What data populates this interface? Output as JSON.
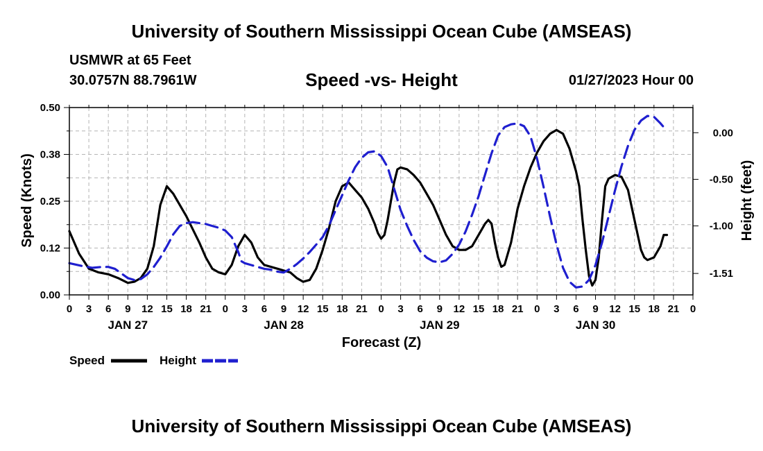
{
  "header": {
    "title": "University of Southern Mississippi Ocean Cube (AMSEAS)",
    "station": "USMWR at 65 Feet",
    "coords": "30.0757N  88.7961W",
    "date": "01/27/2023 Hour 00"
  },
  "footer": {
    "title": "University of Southern Mississippi Ocean Cube (AMSEAS)"
  },
  "colors": {
    "speed": "#000000",
    "height": "#1f1fcf",
    "grid": "#b4b4b4"
  },
  "chart_data": {
    "type": "line",
    "title": "Speed -vs- Height",
    "xlabel": "Forecast (Z)",
    "ylabel_left": "Speed (Knots)",
    "ylabel_right": "Height (feet)",
    "x_hours_range": [
      0,
      96
    ],
    "x_tick_labels": [
      "0",
      "3",
      "6",
      "9",
      "12",
      "15",
      "18",
      "21",
      "0",
      "3",
      "6",
      "9",
      "12",
      "15",
      "18",
      "21",
      "0",
      "3",
      "6",
      "9",
      "12",
      "15",
      "18",
      "21",
      "0",
      "3",
      "6",
      "9",
      "12",
      "15",
      "18",
      "21",
      "0"
    ],
    "day_labels": [
      {
        "hour": 9,
        "label": "JAN 27"
      },
      {
        "hour": 33,
        "label": "JAN 28"
      },
      {
        "hour": 57,
        "label": "JAN 29"
      },
      {
        "hour": 81,
        "label": "JAN 30"
      }
    ],
    "y_left": {
      "range": [
        0,
        0.5
      ],
      "ticks": [
        0.0,
        0.125,
        0.25,
        0.375,
        0.5
      ],
      "tick_labels": [
        "0.00",
        "0.12",
        "0.25",
        "0.38",
        "0.50"
      ]
    },
    "y_right": {
      "range": [
        -1.74,
        0.27
      ],
      "ticks": [
        0.0,
        -0.5,
        -1.0,
        -1.51
      ],
      "tick_labels": [
        "0.00",
        "-0.50",
        "-1.00",
        "-1.51"
      ]
    },
    "legend": [
      {
        "name": "Speed",
        "style": "solid"
      },
      {
        "name": "Height",
        "style": "dashed"
      }
    ],
    "series": [
      {
        "name": "Speed",
        "axis": "left",
        "points": [
          [
            0,
            0.17
          ],
          [
            1.5,
            0.11
          ],
          [
            3,
            0.07
          ],
          [
            4.5,
            0.06
          ],
          [
            6,
            0.055
          ],
          [
            7.5,
            0.045
          ],
          [
            9,
            0.032
          ],
          [
            10,
            0.035
          ],
          [
            11,
            0.045
          ],
          [
            12,
            0.07
          ],
          [
            13,
            0.13
          ],
          [
            14,
            0.24
          ],
          [
            15,
            0.29
          ],
          [
            16,
            0.27
          ],
          [
            18,
            0.21
          ],
          [
            20,
            0.14
          ],
          [
            21,
            0.1
          ],
          [
            22,
            0.07
          ],
          [
            23,
            0.06
          ],
          [
            24,
            0.055
          ],
          [
            25,
            0.08
          ],
          [
            26,
            0.13
          ],
          [
            27,
            0.16
          ],
          [
            28,
            0.14
          ],
          [
            29,
            0.1
          ],
          [
            30,
            0.08
          ],
          [
            32,
            0.07
          ],
          [
            34,
            0.06
          ],
          [
            35,
            0.045
          ],
          [
            36,
            0.035
          ],
          [
            37,
            0.04
          ],
          [
            38,
            0.07
          ],
          [
            39,
            0.12
          ],
          [
            40,
            0.18
          ],
          [
            41,
            0.25
          ],
          [
            42,
            0.29
          ],
          [
            43,
            0.3
          ],
          [
            44,
            0.28
          ],
          [
            45,
            0.26
          ],
          [
            46,
            0.23
          ],
          [
            47,
            0.19
          ],
          [
            47.5,
            0.165
          ],
          [
            48,
            0.15
          ],
          [
            48.5,
            0.16
          ],
          [
            49,
            0.2
          ],
          [
            50,
            0.3
          ],
          [
            50.5,
            0.335
          ],
          [
            51,
            0.34
          ],
          [
            52,
            0.335
          ],
          [
            53,
            0.32
          ],
          [
            54,
            0.3
          ],
          [
            55,
            0.27
          ],
          [
            56,
            0.24
          ],
          [
            57,
            0.2
          ],
          [
            58,
            0.16
          ],
          [
            59,
            0.13
          ],
          [
            60,
            0.12
          ],
          [
            61,
            0.12
          ],
          [
            62,
            0.13
          ],
          [
            63,
            0.16
          ],
          [
            64,
            0.19
          ],
          [
            64.5,
            0.2
          ],
          [
            65,
            0.19
          ],
          [
            65.5,
            0.14
          ],
          [
            66,
            0.1
          ],
          [
            66.5,
            0.075
          ],
          [
            67,
            0.08
          ],
          [
            68,
            0.14
          ],
          [
            69,
            0.23
          ],
          [
            70,
            0.29
          ],
          [
            71,
            0.34
          ],
          [
            72,
            0.38
          ],
          [
            73,
            0.41
          ],
          [
            74,
            0.43
          ],
          [
            75,
            0.44
          ],
          [
            76,
            0.43
          ],
          [
            77,
            0.39
          ],
          [
            78,
            0.33
          ],
          [
            78.5,
            0.29
          ],
          [
            79,
            0.2
          ],
          [
            79.5,
            0.12
          ],
          [
            80,
            0.05
          ],
          [
            80.5,
            0.025
          ],
          [
            81,
            0.04
          ],
          [
            81.5,
            0.1
          ],
          [
            82,
            0.2
          ],
          [
            82.5,
            0.29
          ],
          [
            83,
            0.31
          ],
          [
            84,
            0.32
          ],
          [
            85,
            0.315
          ],
          [
            86,
            0.28
          ],
          [
            87,
            0.2
          ],
          [
            88,
            0.12
          ],
          [
            88.5,
            0.1
          ],
          [
            89,
            0.093
          ],
          [
            90,
            0.1
          ],
          [
            91,
            0.13
          ],
          [
            91.5,
            0.16
          ],
          [
            92,
            0.16
          ]
        ]
      },
      {
        "name": "Height",
        "axis": "right",
        "points": [
          [
            0,
            -1.4
          ],
          [
            2,
            -1.43
          ],
          [
            3.5,
            -1.45
          ],
          [
            5,
            -1.44
          ],
          [
            6,
            -1.44
          ],
          [
            7,
            -1.46
          ],
          [
            8,
            -1.51
          ],
          [
            9,
            -1.56
          ],
          [
            10,
            -1.58
          ],
          [
            11,
            -1.57
          ],
          [
            12,
            -1.52
          ],
          [
            13,
            -1.44
          ],
          [
            14,
            -1.34
          ],
          [
            15,
            -1.22
          ],
          [
            16,
            -1.09
          ],
          [
            17,
            -1.0
          ],
          [
            18,
            -0.97
          ],
          [
            19,
            -0.96
          ],
          [
            20,
            -0.97
          ],
          [
            21,
            -0.98
          ],
          [
            22,
            -1.0
          ],
          [
            23,
            -1.02
          ],
          [
            24,
            -1.05
          ],
          [
            25,
            -1.12
          ],
          [
            26,
            -1.28
          ],
          [
            26.5,
            -1.38
          ],
          [
            27,
            -1.4
          ],
          [
            28,
            -1.42
          ],
          [
            29,
            -1.44
          ],
          [
            30,
            -1.46
          ],
          [
            31,
            -1.47
          ],
          [
            32,
            -1.49
          ],
          [
            33,
            -1.5
          ],
          [
            34,
            -1.46
          ],
          [
            35,
            -1.41
          ],
          [
            36,
            -1.35
          ],
          [
            37,
            -1.28
          ],
          [
            38,
            -1.2
          ],
          [
            39,
            -1.12
          ],
          [
            40,
            -0.99
          ],
          [
            41,
            -0.83
          ],
          [
            42,
            -0.67
          ],
          [
            43,
            -0.51
          ],
          [
            44,
            -0.37
          ],
          [
            45,
            -0.27
          ],
          [
            46,
            -0.21
          ],
          [
            47,
            -0.2
          ],
          [
            48,
            -0.25
          ],
          [
            49,
            -0.37
          ],
          [
            50,
            -0.6
          ],
          [
            51,
            -0.83
          ],
          [
            52,
            -1.0
          ],
          [
            53,
            -1.15
          ],
          [
            54,
            -1.27
          ],
          [
            55,
            -1.34
          ],
          [
            56,
            -1.38
          ],
          [
            57,
            -1.39
          ],
          [
            58,
            -1.37
          ],
          [
            59,
            -1.3
          ],
          [
            60,
            -1.2
          ],
          [
            61,
            -1.06
          ],
          [
            62,
            -0.88
          ],
          [
            63,
            -0.68
          ],
          [
            64,
            -0.45
          ],
          [
            65,
            -0.22
          ],
          [
            66,
            -0.03
          ],
          [
            67,
            0.06
          ],
          [
            68,
            0.09
          ],
          [
            69,
            0.1
          ],
          [
            70,
            0.07
          ],
          [
            71,
            -0.04
          ],
          [
            72,
            -0.28
          ],
          [
            73,
            -0.58
          ],
          [
            74,
            -0.9
          ],
          [
            75,
            -1.2
          ],
          [
            76,
            -1.45
          ],
          [
            77,
            -1.6
          ],
          [
            78,
            -1.66
          ],
          [
            79,
            -1.65
          ],
          [
            80,
            -1.58
          ],
          [
            81,
            -1.42
          ],
          [
            82,
            -1.18
          ],
          [
            83,
            -0.9
          ],
          [
            84,
            -0.62
          ],
          [
            85,
            -0.36
          ],
          [
            86,
            -0.14
          ],
          [
            87,
            0.03
          ],
          [
            88,
            0.13
          ],
          [
            89,
            0.18
          ],
          [
            90,
            0.17
          ],
          [
            91,
            0.1
          ],
          [
            92,
            0.02
          ]
        ]
      }
    ]
  }
}
